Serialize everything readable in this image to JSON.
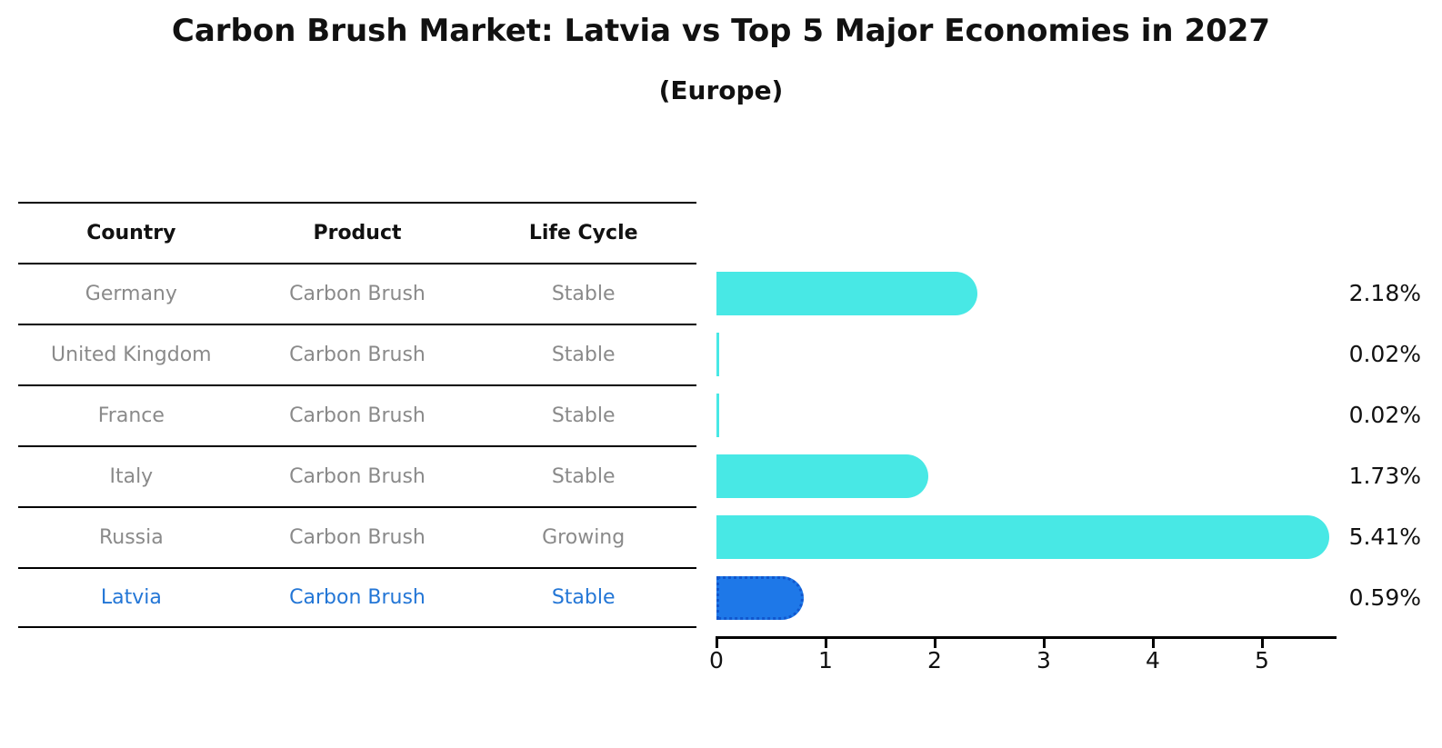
{
  "title": "Carbon Brush Market: Latvia vs Top 5 Major Economies in 2027",
  "subtitle": "(Europe)",
  "colors": {
    "bar": "#48E8E5",
    "highlight_bar": "#1E78E8",
    "highlight_bar_border": "#1157CE",
    "table_header_text": "#111111",
    "table_row_text": "#8A8A8A",
    "highlight_row_text": "#2376D6",
    "axis": "#000000",
    "value_label_text": "#111111"
  },
  "table": {
    "headers": [
      "Country",
      "Product",
      "Life Cycle"
    ],
    "rows": [
      {
        "country": "Germany",
        "product": "Carbon Brush",
        "life_cycle": "Stable",
        "highlight": false
      },
      {
        "country": "United Kingdom",
        "product": "Carbon Brush",
        "life_cycle": "Stable",
        "highlight": false
      },
      {
        "country": "France",
        "product": "Carbon Brush",
        "life_cycle": "Stable",
        "highlight": false
      },
      {
        "country": "Italy",
        "product": "Carbon Brush",
        "life_cycle": "Stable",
        "highlight": false
      },
      {
        "country": "Russia",
        "product": "Carbon Brush",
        "life_cycle": "Growing",
        "highlight": false
      },
      {
        "country": "Latvia",
        "product": "Carbon Brush",
        "life_cycle": "Stable",
        "highlight": true
      }
    ]
  },
  "chart_data": {
    "type": "bar",
    "orientation": "horizontal",
    "title": "Carbon Brush Market: Latvia vs Top 5 Major Economies in 2027",
    "subtitle": "(Europe)",
    "categories": [
      "Germany",
      "United Kingdom",
      "France",
      "Italy",
      "Russia",
      "Latvia"
    ],
    "values": [
      2.18,
      0.02,
      0.02,
      1.73,
      5.41,
      0.59
    ],
    "value_labels": [
      "2.18%",
      "0.02%",
      "0.02%",
      "1.73%",
      "5.41%",
      "0.59%"
    ],
    "highlight_index": 5,
    "xlim": [
      0,
      5.7
    ],
    "xticks": [
      0,
      1,
      2,
      3,
      4,
      5
    ],
    "grid": false,
    "legend": false
  }
}
